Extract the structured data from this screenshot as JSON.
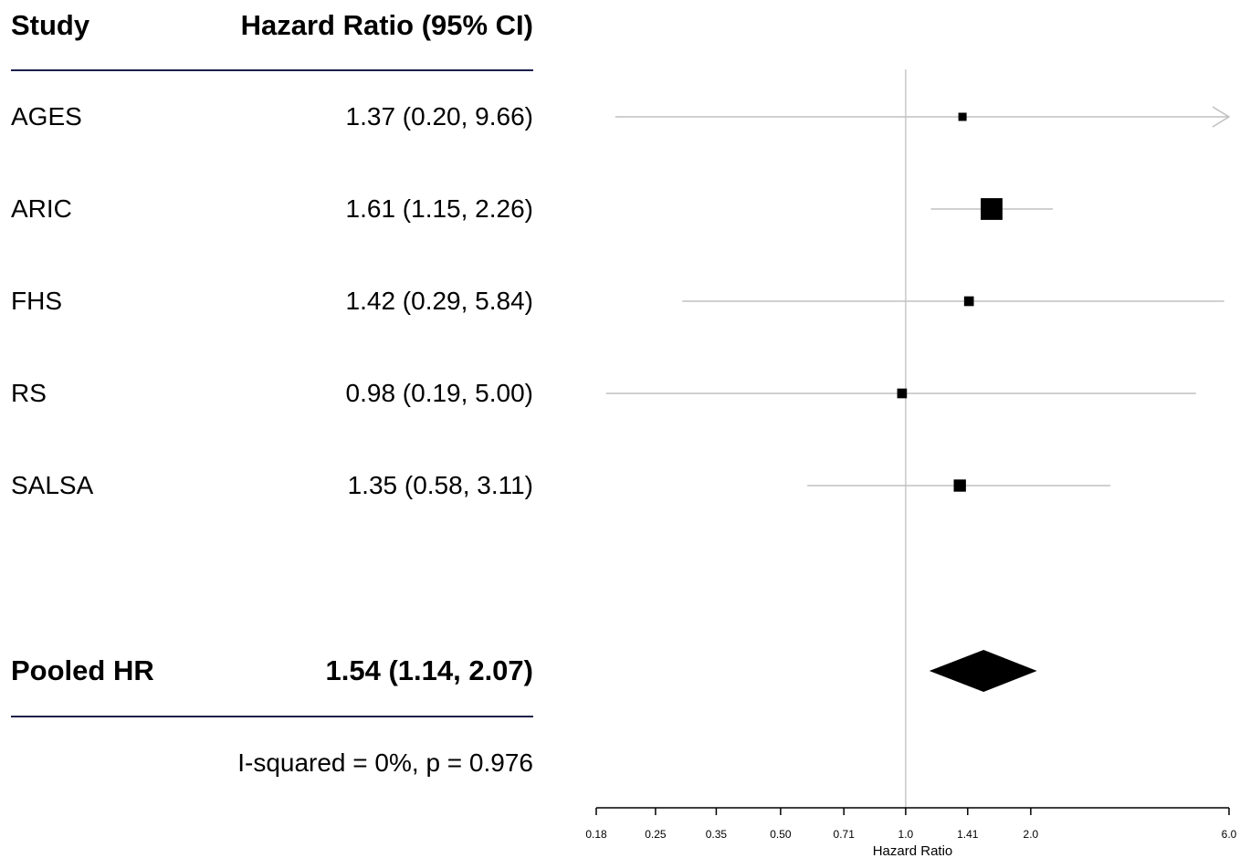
{
  "table": {
    "col_study": "Study",
    "col_hr": "Hazard Ratio (95% CI)",
    "rows": [
      {
        "study": "AGES",
        "hr": "1.37 (0.20, 9.66)"
      },
      {
        "study": "ARIC",
        "hr": "1.61 (1.15, 2.26)"
      },
      {
        "study": "FHS",
        "hr": "1.42 (0.29, 5.84)"
      },
      {
        "study": "RS",
        "hr": "0.98 (0.19, 5.00)"
      },
      {
        "study": "SALSA",
        "hr": "1.35 (0.58, 3.11)"
      }
    ],
    "pooled_label": "Pooled HR",
    "pooled_value": "1.54 (1.14, 2.07)",
    "heterogeneity": "I-squared = 0%, p = 0.976"
  },
  "chart_data": {
    "type": "forest",
    "xlabel": "Hazard Ratio",
    "xscale": "log",
    "xlim": [
      0.18,
      6.0
    ],
    "reference_line": 1.0,
    "ticks": [
      0.18,
      0.25,
      0.35,
      0.5,
      0.71,
      1.0,
      1.41,
      2.0,
      6.0
    ],
    "tick_labels": [
      "0.18",
      "0.25",
      "0.35",
      "0.50",
      "0.71",
      "1.0",
      "1.41",
      "2.0",
      "6.0"
    ],
    "studies": [
      {
        "name": "AGES",
        "hr": 1.37,
        "lower": 0.2,
        "upper": 9.66,
        "weight": 1.0,
        "clipped_upper": true
      },
      {
        "name": "ARIC",
        "hr": 1.61,
        "lower": 1.15,
        "upper": 2.26,
        "weight": 7.0,
        "clipped_upper": false
      },
      {
        "name": "FHS",
        "hr": 1.42,
        "lower": 0.29,
        "upper": 5.84,
        "weight": 1.4,
        "clipped_upper": false
      },
      {
        "name": "RS",
        "hr": 0.98,
        "lower": 0.19,
        "upper": 5.0,
        "weight": 1.4,
        "clipped_upper": false
      },
      {
        "name": "SALSA",
        "hr": 1.35,
        "lower": 0.58,
        "upper": 3.11,
        "weight": 2.2,
        "clipped_upper": false
      }
    ],
    "pooled": {
      "hr": 1.54,
      "lower": 1.14,
      "upper": 2.07
    },
    "colors": {
      "ci_line": "#c0c0c0",
      "marker": "#000000",
      "reference": "#c8c8c8",
      "axis": "#000000"
    }
  }
}
